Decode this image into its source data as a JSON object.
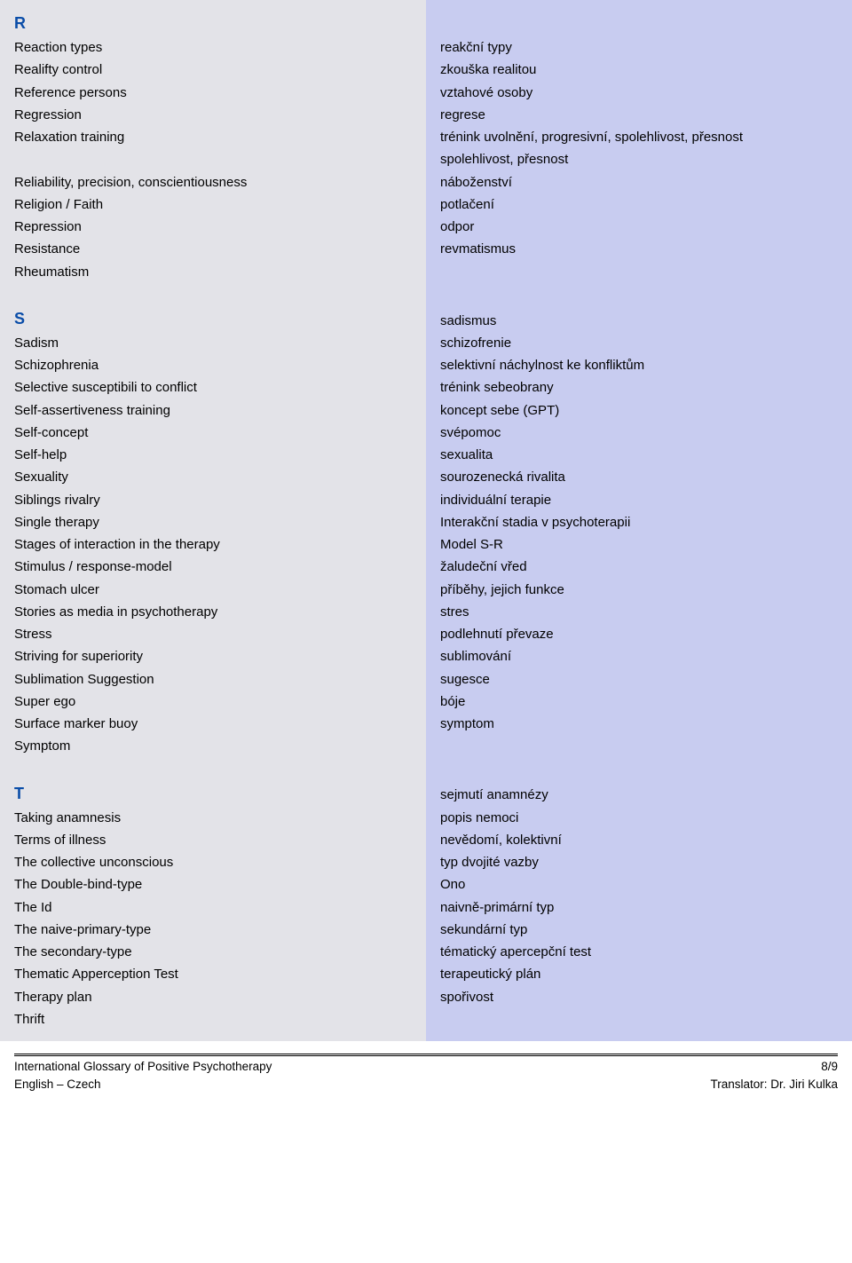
{
  "sections": [
    {
      "letter": "R",
      "rows": [
        {
          "en": "Reaction types",
          "cz": "reakční typy"
        },
        {
          "en": "Realifty control",
          "cz": "zkouška realitou"
        },
        {
          "en": "Reference persons",
          "cz": "vztahové osoby"
        },
        {
          "en": "Regression",
          "cz": "regrese"
        },
        {
          "en": "Relaxation training",
          "cz": "trénink uvolnění, progresivní, spolehlivost, přesnost",
          "multiline": true
        },
        {
          "en": "Reliability, precision, conscientiousness",
          "cz": "spolehlivost, přesnost"
        },
        {
          "en": "Religion / Faith",
          "cz": "náboženství"
        },
        {
          "en": "Repression",
          "cz": "potlačení"
        },
        {
          "en": "Resistance",
          "cz": "odpor"
        },
        {
          "en": "Rheumatism",
          "cz": "revmatismus"
        }
      ]
    },
    {
      "letter": "S",
      "rows": [
        {
          "en": "Sadism",
          "cz": "sadismus"
        },
        {
          "en": "Schizophrenia",
          "cz": "schizofrenie"
        },
        {
          "en": "Selective susceptibili to conflict",
          "cz": "selektivní náchylnost ke konfliktům"
        },
        {
          "en": "Self-assertiveness training",
          "cz": "trénink sebeobrany"
        },
        {
          "en": "Self-concept",
          "cz": "koncept sebe (GPT)"
        },
        {
          "en": "Self-help",
          "cz": "svépomoc"
        },
        {
          "en": "Sexuality",
          "cz": "sexualita"
        },
        {
          "en": "Siblings rivalry",
          "cz": "sourozenecká rivalita"
        },
        {
          "en": "Single therapy",
          "cz": "individuální terapie"
        },
        {
          "en": "Stages of interaction in the therapy",
          "cz": "Interakční stadia v psychoterapii"
        },
        {
          "en": "Stimulus / response-model",
          "cz": "Model S-R"
        },
        {
          "en": "Stomach ulcer",
          "cz": "žaludeční vřed"
        },
        {
          "en": "Stories as media in psychotherapy",
          "cz": "příběhy, jejich funkce"
        },
        {
          "en": "Stress",
          "cz": "stres"
        },
        {
          "en": "Striving for superiority",
          "cz": "podlehnutí převaze"
        },
        {
          "en": "Sublimation Suggestion",
          "cz": "sublimování"
        },
        {
          "en": "Super ego",
          "cz": "sugesce"
        },
        {
          "en": "Surface marker buoy",
          "cz": "bóje"
        },
        {
          "en": "Symptom",
          "cz": "symptom"
        }
      ]
    },
    {
      "letter": "T",
      "rows": [
        {
          "en": "Taking anamnesis",
          "cz": "sejmutí anamnézy"
        },
        {
          "en": "Terms of illness",
          "cz": "popis nemoci"
        },
        {
          "en": "The collective unconscious",
          "cz": "nevědomí, kolektivní"
        },
        {
          "en": "The Double-bind-type",
          "cz": "typ dvojité vazby"
        },
        {
          "en": "The Id",
          "cz": "Ono"
        },
        {
          "en": "The naive-primary-type",
          "cz": "naivně-primární typ"
        },
        {
          "en": "The secondary-type",
          "cz": "sekundární typ"
        },
        {
          "en": "Thematic Apperception Test",
          "cz": "tématický apercepční test"
        },
        {
          "en": "Therapy plan",
          "cz": "terapeutický plán"
        },
        {
          "en": "Thrift",
          "cz": "spořivost"
        }
      ]
    }
  ],
  "footer": {
    "left1": "International Glossary of Positive Psychotherapy",
    "right1": "8/9",
    "left2": "English – Czech",
    "right2": "Translator: Dr. Jiri Kulka"
  },
  "colors": {
    "left_bg": "#e3e3e8",
    "right_bg": "#c8ccf0",
    "letter_color": "#0a4da8"
  }
}
